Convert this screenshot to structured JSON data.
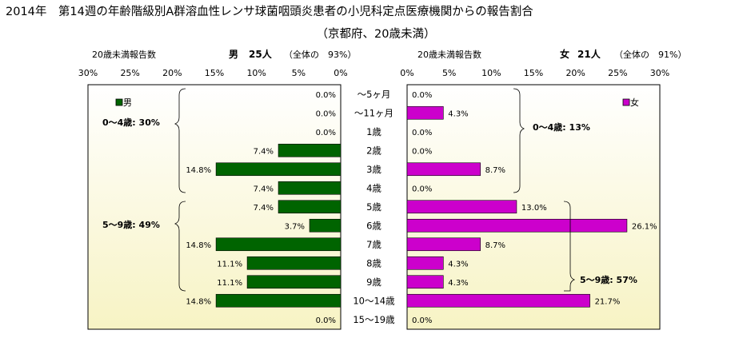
{
  "title_line1": "2014年　第14週の年齢階級別A群溶血性レンサ球菌咽頭炎患者の小児科定点医療機関からの報告割合",
  "title_line2": "（京都府、20歳未満）",
  "left_header": {
    "label": "20歳未満報告数",
    "sex": "男",
    "count": "25人",
    "share": "（全体の　93%）"
  },
  "right_header": {
    "label": "20歳未満報告数",
    "sex": "女",
    "count": "21人",
    "share": "（全体の　91%）"
  },
  "colors": {
    "male": "#006400",
    "female": "#cc00cc",
    "panel_top": "#ffffff",
    "panel_bottom": "#f7f3c4"
  },
  "chart_data": {
    "type": "bar",
    "orientation": "horizontal-population-pyramid",
    "categories": [
      "～5ヶ月",
      "～11ヶ月",
      "1歳",
      "2歳",
      "3歳",
      "4歳",
      "5歳",
      "6歳",
      "7歳",
      "8歳",
      "9歳",
      "10～14歳",
      "15～19歳"
    ],
    "xlim": [
      0,
      30
    ],
    "x_ticks": [
      "0%",
      "5%",
      "10%",
      "15%",
      "20%",
      "25%",
      "30%"
    ],
    "series": [
      {
        "name": "男",
        "values": [
          0.0,
          0.0,
          0.0,
          7.4,
          14.8,
          7.4,
          7.4,
          3.7,
          14.8,
          11.1,
          11.1,
          14.8,
          0.0
        ],
        "labels": [
          "0.0%",
          "0.0%",
          "0.0%",
          "7.4%",
          "14.8%",
          "7.4%",
          "7.4%",
          "3.7%",
          "14.8%",
          "11.1%",
          "11.1%",
          "14.8%",
          "0.0%"
        ]
      },
      {
        "name": "女",
        "values": [
          0.0,
          4.3,
          0.0,
          0.0,
          8.7,
          0.0,
          13.0,
          26.1,
          8.7,
          4.3,
          4.3,
          21.7,
          0.0
        ],
        "labels": [
          "0.0%",
          "4.3%",
          "0.0%",
          "0.0%",
          "8.7%",
          "0.0%",
          "13.0%",
          "26.1%",
          "8.7%",
          "4.3%",
          "4.3%",
          "21.7%",
          "0.0%"
        ]
      }
    ],
    "annotations": {
      "male_0_4": "0～4歳: 30%",
      "male_5_9": "5～9歳: 49%",
      "female_0_4": "0～4歳: 13%",
      "female_5_9": "5～9歳: 57%"
    }
  }
}
